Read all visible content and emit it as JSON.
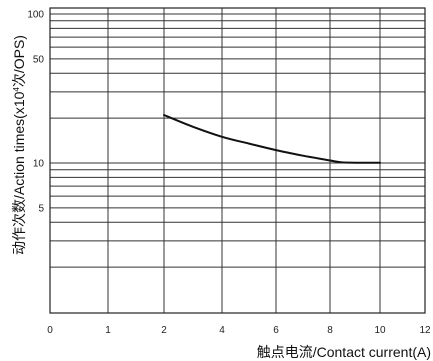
{
  "chart_data": {
    "type": "line",
    "title": "",
    "xlabel": "触点电流/Contact current(A)",
    "ylabel_main": "动作次数/Action times(x10",
    "ylabel_exp": "4",
    "ylabel_tail": "次/OPS)",
    "x_ticks": [
      "0",
      "1",
      "2",
      "4",
      "6",
      "8",
      "10",
      "12"
    ],
    "y_ticks": [
      "100",
      "50",
      "10",
      "5"
    ],
    "y_tick_values": [
      100,
      50,
      10,
      5
    ],
    "y_scale": "log",
    "ylim": [
      1,
      100
    ],
    "grid": true,
    "series": [
      {
        "x": [
          2,
          3,
          4,
          5,
          6,
          7,
          8,
          8.5,
          9,
          10
        ],
        "y": [
          21,
          17.5,
          15,
          13.5,
          12.2,
          11.2,
          10.4,
          10.1,
          10.05,
          10.05
        ]
      }
    ]
  }
}
